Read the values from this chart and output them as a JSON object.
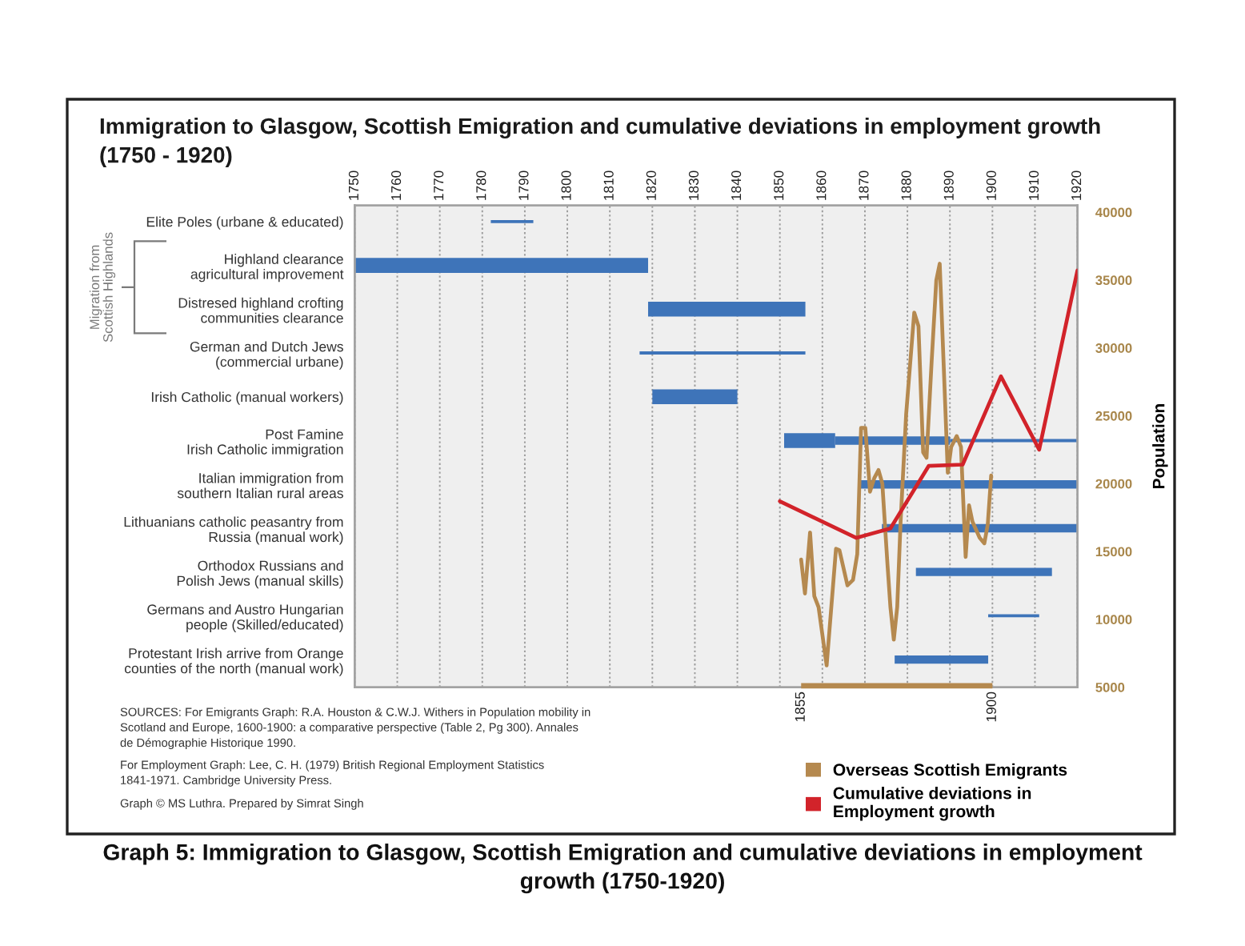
{
  "chart_data": [
    {
      "type": "bar",
      "orientation": "horizontal",
      "title": "Immigration to Glasgow, Scottish Emigration and cumulative deviations in employment growth\n(1750 - 1920)",
      "categories": [
        "Elite Poles (urbane & educated)",
        "Highland clearance\nagricultural improvement",
        "Distresed highland crofting\ncommunities clearance",
        "German and Dutch Jews\n(commercial urbane)",
        "Irish Catholic (manual workers)",
        "Post Famine\nIrish Catholic immigration",
        "Italian immigration from\nsouthern Italian rural areas",
        "Lithuanians catholic peasantry from\nRussia (manual work)",
        "Orthodox Russians and\nPolish Jews (manual skills)",
        "Germans and Austro Hungarian\npeople (Skilled/educated)",
        "Protestant Irish arrive from Orange\ncounties of the north (manual work)"
      ],
      "series": [
        {
          "color": "#3e74b9",
          "base": [
            null,
            1750,
            1819,
            null,
            1820,
            1851,
            null,
            null,
            null,
            null,
            null
          ],
          "values": [
            null,
            69,
            37,
            null,
            20,
            12,
            null,
            null,
            null,
            null,
            null
          ]
        },
        {
          "color": "#3e74b9",
          "base": [
            null,
            null,
            null,
            null,
            null,
            1863,
            1869,
            1874,
            1882,
            null,
            1877
          ],
          "values": [
            null,
            null,
            null,
            null,
            null,
            27,
            51,
            46,
            32,
            null,
            22
          ]
        },
        {
          "color": "#3e74b9",
          "base": [
            1782,
            null,
            null,
            1817,
            null,
            1890,
            null,
            null,
            null,
            1899,
            null
          ],
          "values": [
            10,
            null,
            null,
            39,
            null,
            30,
            null,
            null,
            null,
            12,
            null
          ]
        }
      ],
      "xlim": [
        1750,
        1920
      ],
      "xticks": [
        1750,
        1760,
        1770,
        1780,
        1790,
        1800,
        1810,
        1820,
        1830,
        1840,
        1850,
        1860,
        1870,
        1880,
        1890,
        1900,
        1910,
        1920
      ],
      "grid": "x",
      "annotations": [
        "SOURCES: For Emigrants Graph: R.A. Houston & C.W.J. Withers in Population mobility in\nScotland and Europe, 1600-1900: a comparative perspective (Table 2, Pg 300). Annales\nde Démographie Historique 1990.",
        "For Employment Graph: Lee, C. H. (1979) British Regional Employment Statistics\n1841-1971. Cambridge University Press.",
        "Graph © MS Luthra. Prepared by Simrat Singh",
        "Graph 5: Immigration to Glasgow, Scottish Emigration and cumulative deviations in employment\ngrowth (1750-1920)",
        "Migration from\nScottish Highlands"
      ]
    },
    {
      "type": "line",
      "series": [
        {
          "type": "line",
          "name": "Overseas Scottish Emigrants",
          "color": "#b5894f",
          "x": [
            1855.0,
            1855.9,
            1857.1,
            1858.1,
            1859.1,
            1861.0,
            1863.2,
            1864.0,
            1865.9,
            1867.2,
            1868.2,
            1869.1,
            1870.1,
            1871.2,
            1872.2,
            1873.2,
            1874.1,
            1875.3,
            1876.0,
            1876.8,
            1877.6,
            1878.4,
            1879.7,
            1881.6,
            1882.6,
            1883.7,
            1884.5,
            1885.7,
            1886.8,
            1887.6,
            1888.5,
            1889.5,
            1890.3,
            1891.6,
            1892.6,
            1893.7,
            1894.5,
            1895.3,
            1897.0,
            1898.1,
            1898.9,
            1899.7
          ],
          "values": [
            14400,
            11900,
            16400,
            11700,
            10900,
            6600,
            15200,
            15100,
            12500,
            12900,
            14800,
            24100,
            24100,
            19400,
            20400,
            21000,
            20000,
            14100,
            10900,
            8500,
            10900,
            17200,
            25100,
            32600,
            31600,
            22300,
            21900,
            29000,
            35000,
            36200,
            29000,
            20800,
            22700,
            23500,
            22700,
            14600,
            18400,
            17200,
            16000,
            15600,
            17000,
            20600
          ]
        },
        {
          "type": "line",
          "name": "Cumulative deviations in\nEmployment growth",
          "color": "#d2232a",
          "x": [
            1850,
            1868,
            1876,
            1885,
            1893,
            1902,
            1911,
            1920
          ],
          "values": [
            18700,
            16000,
            16700,
            21300,
            21400,
            27900,
            22500,
            35700
          ]
        }
      ],
      "xlim": [
        1750,
        1920
      ],
      "xticks": [
        1855,
        1900
      ],
      "ylim": [
        5000,
        40500
      ],
      "yticks": [
        5000,
        10000,
        15000,
        20000,
        25000,
        30000,
        35000,
        40000
      ],
      "ylabel": "Population",
      "legend": "bottom right"
    }
  ]
}
